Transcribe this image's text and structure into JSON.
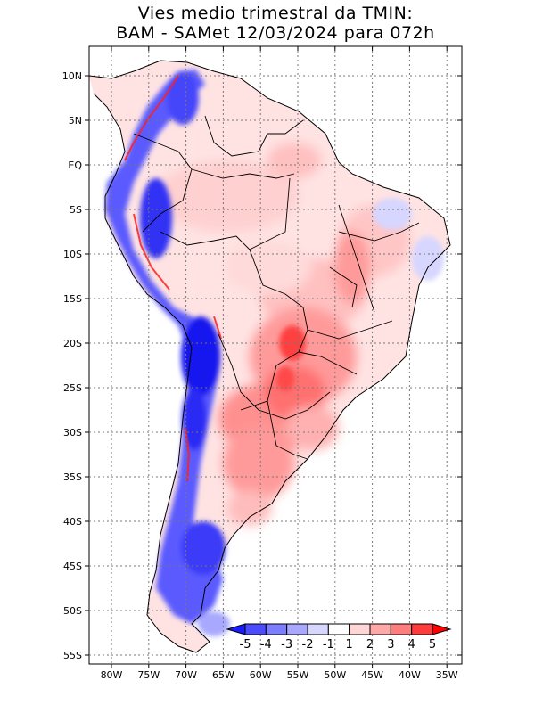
{
  "title": {
    "line1": "Vies medio trimestral da TMIN:",
    "line2": "BAM - SAMet 12/03/2024  para 072h"
  },
  "map": {
    "lat_ticks": [
      "10N",
      "5N",
      "EQ",
      "5S",
      "10S",
      "15S",
      "20S",
      "25S",
      "30S",
      "35S",
      "40S",
      "45S",
      "50S",
      "55S"
    ],
    "lon_ticks": [
      "80W",
      "75W",
      "70W",
      "65W",
      "60W",
      "55W",
      "50W",
      "45W",
      "40W",
      "35W"
    ]
  },
  "colorbar": {
    "labels": [
      "-5",
      "-4",
      "-3",
      "-2",
      "-1",
      "1",
      "2",
      "3",
      "4",
      "5"
    ],
    "colors": [
      "#1a1aff",
      "#4b4bff",
      "#7d7dff",
      "#a8a8ff",
      "#d6d6ff",
      "#ffffff",
      "#ffd6d6",
      "#ffa8a8",
      "#ff7d7d",
      "#ff3c3c",
      "#ff0000"
    ]
  }
}
